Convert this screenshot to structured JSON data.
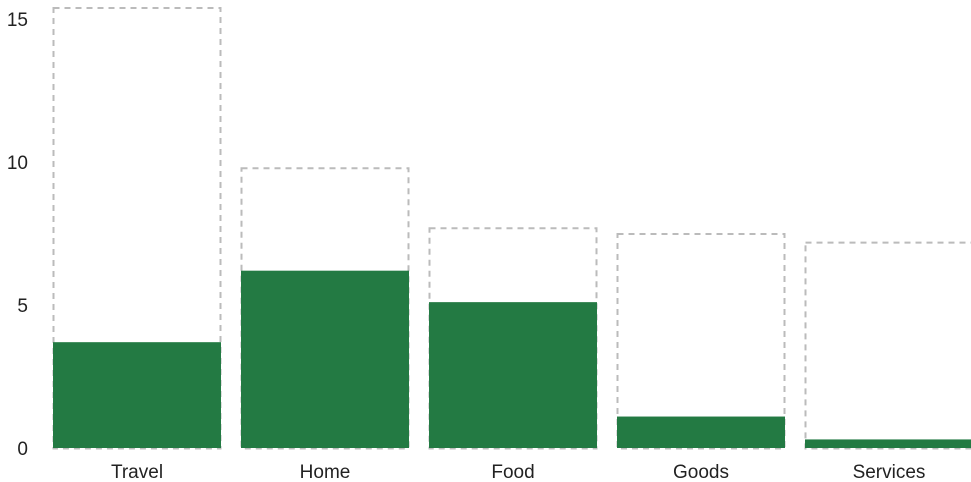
{
  "colors": {
    "actual": "#237a43",
    "outline": "#bbbbbb"
  },
  "chart_data": {
    "type": "bar",
    "categories": [
      "Travel",
      "Home",
      "Food",
      "Goods",
      "Services"
    ],
    "series": [
      {
        "values": [
          3.7,
          6.2,
          5.1,
          1.1,
          0.3
        ]
      },
      {
        "style": "dashed-outline",
        "values": [
          15.4,
          9.8,
          7.7,
          7.5,
          7.2
        ]
      }
    ],
    "yticks": [
      "0",
      "5",
      "10",
      "15"
    ],
    "ylim": [
      0,
      15.5
    ],
    "xlabel": "",
    "ylabel": "",
    "title": "",
    "grid": false
  }
}
